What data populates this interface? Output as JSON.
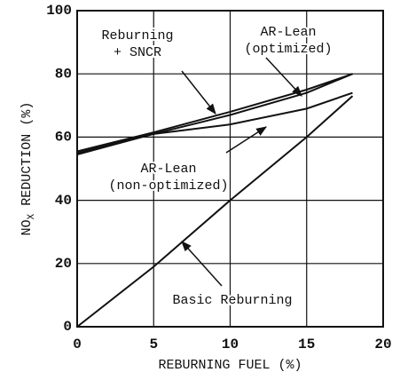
{
  "chart_data": {
    "type": "line",
    "xlabel": "REBURNING FUEL (%)",
    "ylabel": {
      "main": "NO",
      "sub": "X",
      "rest": " REDUCTION (%)"
    },
    "xlim": [
      0,
      20
    ],
    "xticks": [
      0,
      5,
      10,
      15,
      20
    ],
    "ylim": [
      0,
      100
    ],
    "yticks": [
      0,
      20,
      40,
      60,
      80,
      100
    ],
    "grid": true,
    "x": [
      0,
      5,
      10,
      15,
      18
    ],
    "series": [
      {
        "color": "#111111",
        "values": [
          55.5,
          61.5,
          68,
          75,
          80
        ]
      },
      {
        "color": "#111111",
        "values": [
          54.5,
          61,
          67,
          74,
          80
        ]
      },
      {
        "color": "#111111",
        "values": [
          55,
          61,
          64,
          69,
          74
        ]
      },
      {
        "color": "#111111",
        "values": [
          0,
          19,
          40,
          60,
          73
        ]
      }
    ],
    "annotations": [
      {
        "lines": [
          "Reburning",
          "+ SNCR"
        ]
      },
      {
        "lines": [
          "AR-Lean",
          "(optimized)"
        ]
      },
      {
        "lines": [
          "AR-Lean",
          "(non-optimized)"
        ]
      },
      {
        "lines": [
          "Basic Reburning"
        ]
      }
    ]
  }
}
